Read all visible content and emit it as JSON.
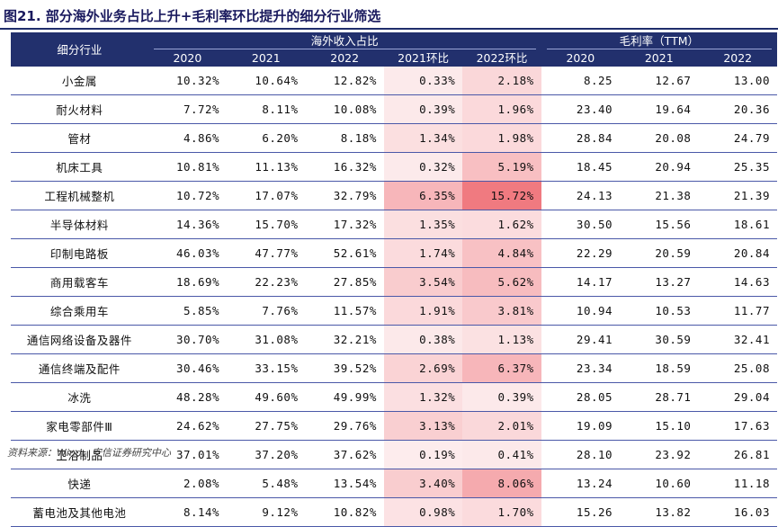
{
  "title": "图21. 部分海外业务占比上升+毛利率环比提升的细分行业筛选",
  "header": {
    "industry": "细分行业",
    "group_overseas": "海外收入占比",
    "group_margin": "毛利率（TTM）",
    "overseas_cols": [
      "2020",
      "2021",
      "2022",
      "2021环比",
      "2022环比"
    ],
    "margin_cols": [
      "2020",
      "2021",
      "2022"
    ]
  },
  "colors": {
    "header_bg": "#22306d",
    "heat_low": "#fdeff0",
    "heat_high": "#f07a80",
    "row_rule": "#4a58a8"
  },
  "rows": [
    {
      "name": "小金属",
      "o2020": "10.32%",
      "o2021": "10.64%",
      "o2022": "12.82%",
      "c2021": "0.33%",
      "c2022": "2.18%",
      "m2020": "8.25",
      "m2021": "12.67",
      "m2022": "13.00"
    },
    {
      "name": "耐火材料",
      "o2020": "7.72%",
      "o2021": "8.11%",
      "o2022": "10.08%",
      "c2021": "0.39%",
      "c2022": "1.96%",
      "m2020": "23.40",
      "m2021": "19.64",
      "m2022": "20.36"
    },
    {
      "name": "管材",
      "o2020": "4.86%",
      "o2021": "6.20%",
      "o2022": "8.18%",
      "c2021": "1.34%",
      "c2022": "1.98%",
      "m2020": "28.84",
      "m2021": "20.08",
      "m2022": "24.79"
    },
    {
      "name": "机床工具",
      "o2020": "10.81%",
      "o2021": "11.13%",
      "o2022": "16.32%",
      "c2021": "0.32%",
      "c2022": "5.19%",
      "m2020": "18.45",
      "m2021": "20.94",
      "m2022": "25.35"
    },
    {
      "name": "工程机械整机",
      "o2020": "10.72%",
      "o2021": "17.07%",
      "o2022": "32.79%",
      "c2021": "6.35%",
      "c2022": "15.72%",
      "m2020": "24.13",
      "m2021": "21.38",
      "m2022": "21.39"
    },
    {
      "name": "半导体材料",
      "o2020": "14.36%",
      "o2021": "15.70%",
      "o2022": "17.32%",
      "c2021": "1.35%",
      "c2022": "1.62%",
      "m2020": "30.50",
      "m2021": "15.56",
      "m2022": "18.61"
    },
    {
      "name": "印制电路板",
      "o2020": "46.03%",
      "o2021": "47.77%",
      "o2022": "52.61%",
      "c2021": "1.74%",
      "c2022": "4.84%",
      "m2020": "22.29",
      "m2021": "20.59",
      "m2022": "20.84"
    },
    {
      "name": "商用载客车",
      "o2020": "18.69%",
      "o2021": "22.23%",
      "o2022": "27.85%",
      "c2021": "3.54%",
      "c2022": "5.62%",
      "m2020": "14.17",
      "m2021": "13.27",
      "m2022": "14.63"
    },
    {
      "name": "综合乘用车",
      "o2020": "5.85%",
      "o2021": "7.76%",
      "o2022": "11.57%",
      "c2021": "1.91%",
      "c2022": "3.81%",
      "m2020": "10.94",
      "m2021": "10.53",
      "m2022": "11.77"
    },
    {
      "name": "通信网络设备及器件",
      "o2020": "30.70%",
      "o2021": "31.08%",
      "o2022": "32.21%",
      "c2021": "0.38%",
      "c2022": "1.13%",
      "m2020": "29.41",
      "m2021": "30.59",
      "m2022": "32.41"
    },
    {
      "name": "通信终端及配件",
      "o2020": "30.46%",
      "o2021": "33.15%",
      "o2022": "39.52%",
      "c2021": "2.69%",
      "c2022": "6.37%",
      "m2020": "23.34",
      "m2021": "18.59",
      "m2022": "25.08"
    },
    {
      "name": "冰洗",
      "o2020": "48.28%",
      "o2021": "49.60%",
      "o2022": "49.99%",
      "c2021": "1.32%",
      "c2022": "0.39%",
      "m2020": "28.05",
      "m2021": "28.71",
      "m2022": "29.04"
    },
    {
      "name": "家电零部件Ⅲ",
      "o2020": "24.62%",
      "o2021": "27.75%",
      "o2022": "29.76%",
      "c2021": "3.13%",
      "c2022": "2.01%",
      "m2020": "19.09",
      "m2021": "15.10",
      "m2022": "17.63"
    },
    {
      "name": "卫浴制品",
      "o2020": "37.01%",
      "o2021": "37.20%",
      "o2022": "37.62%",
      "c2021": "0.19%",
      "c2022": "0.41%",
      "m2020": "28.10",
      "m2021": "23.92",
      "m2022": "26.81"
    },
    {
      "name": "快递",
      "o2020": "2.08%",
      "o2021": "5.48%",
      "o2022": "13.54%",
      "c2021": "3.40%",
      "c2022": "8.06%",
      "m2020": "13.24",
      "m2021": "10.60",
      "m2022": "11.18"
    },
    {
      "name": "蓄电池及其他电池",
      "o2020": "8.14%",
      "o2021": "9.12%",
      "o2022": "10.82%",
      "c2021": "0.98%",
      "c2022": "1.70%",
      "m2020": "15.26",
      "m2021": "13.82",
      "m2022": "16.03"
    }
  ],
  "footer": "资料来源：Wind、安信证券研究中心"
}
